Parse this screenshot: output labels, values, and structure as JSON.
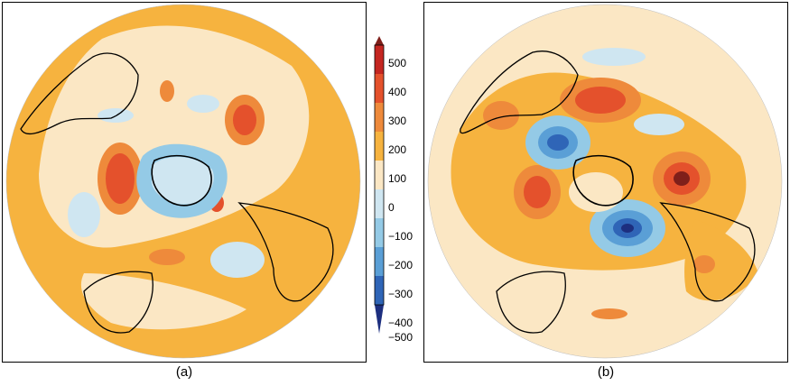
{
  "panels": [
    {
      "id": "a",
      "caption": "(a)"
    },
    {
      "id": "b",
      "caption": "(b)"
    }
  ],
  "colorbar": {
    "ticks": [
      "500",
      "400",
      "300",
      "200",
      "100",
      "0",
      "−100",
      "−200",
      "−300",
      "−400",
      "−500"
    ],
    "colors": {
      "500": "#7f1f1a",
      "400": "#c42621",
      "300": "#e4512c",
      "200": "#ee8a3b",
      "100": "#f6b33f",
      "0": "#fbe7c4",
      "-100": "#cfe6f1",
      "-200": "#94cae6",
      "-300": "#5a9fd6",
      "-400": "#2f65b7",
      "-500": "#1d2f7f"
    }
  }
}
